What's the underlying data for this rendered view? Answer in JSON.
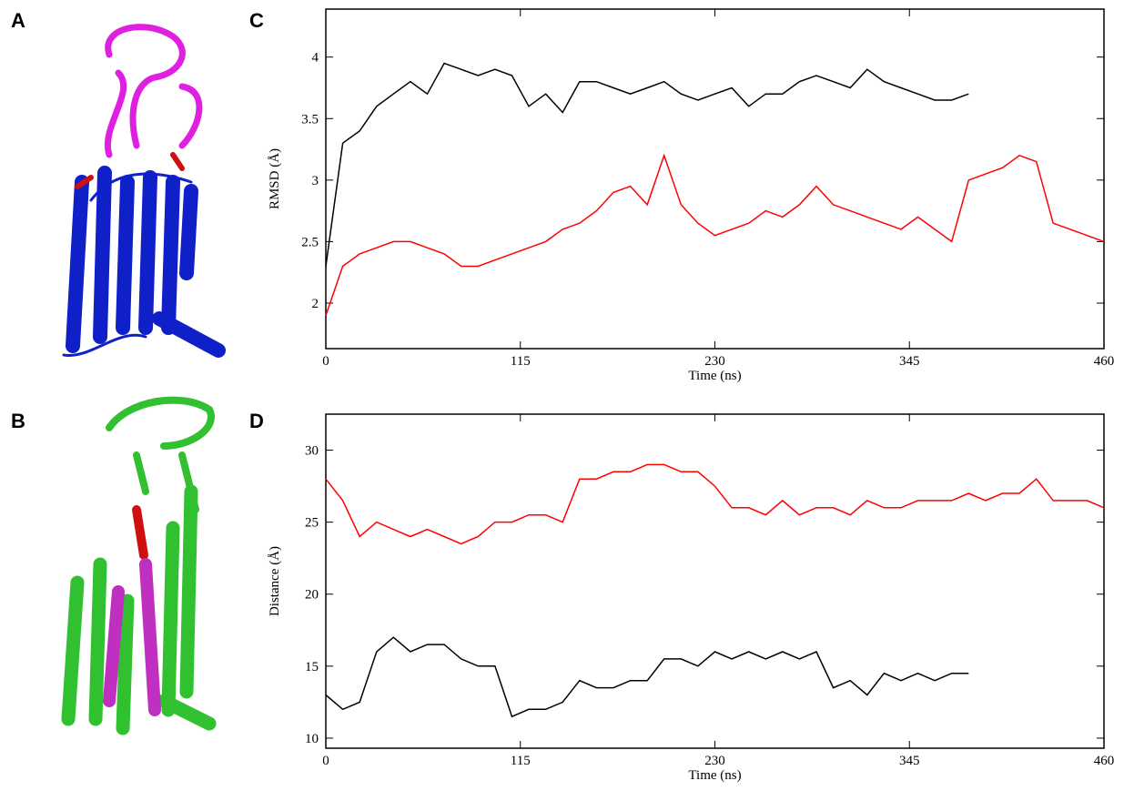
{
  "panel_labels": [
    "A",
    "B",
    "C",
    "D"
  ],
  "chart_data": [
    {
      "type": "line",
      "y_label": "RMSD (Å)",
      "x_label": "Time (ns)",
      "xlim": [
        0,
        460
      ],
      "xticks": [
        0,
        115,
        230,
        345,
        460
      ],
      "ylim": [
        1.63,
        4.39
      ],
      "yticks": [
        2,
        2.5,
        3,
        3.5,
        4
      ],
      "series": [
        {
          "color": "#000000",
          "x": [
            0,
            10,
            20,
            30,
            40,
            50,
            60,
            70,
            80,
            90,
            100,
            110,
            120,
            130,
            140,
            150,
            160,
            170,
            180,
            190,
            200,
            210,
            220,
            230,
            240,
            250,
            260,
            270,
            280,
            290,
            300,
            310,
            320,
            330,
            340,
            350,
            360,
            370,
            380
          ],
          "values": [
            2.3,
            3.3,
            3.4,
            3.6,
            3.7,
            3.8,
            3.7,
            3.95,
            3.9,
            3.85,
            3.9,
            3.85,
            3.6,
            3.7,
            3.55,
            3.8,
            3.8,
            3.75,
            3.7,
            3.75,
            3.8,
            3.7,
            3.65,
            3.7,
            3.75,
            3.6,
            3.7,
            3.7,
            3.8,
            3.85,
            3.8,
            3.75,
            3.9,
            3.8,
            3.75,
            3.7,
            3.65,
            3.65,
            3.7
          ]
        },
        {
          "color": "#ff0000",
          "x": [
            0,
            10,
            20,
            30,
            40,
            50,
            60,
            70,
            80,
            90,
            100,
            110,
            120,
            130,
            140,
            150,
            160,
            170,
            180,
            190,
            200,
            210,
            220,
            230,
            240,
            250,
            260,
            270,
            280,
            290,
            300,
            310,
            320,
            330,
            340,
            350,
            360,
            370,
            380,
            390,
            400,
            410,
            420,
            430,
            440,
            450,
            460
          ],
          "values": [
            1.9,
            2.3,
            2.4,
            2.45,
            2.5,
            2.5,
            2.45,
            2.4,
            2.3,
            2.3,
            2.35,
            2.4,
            2.45,
            2.5,
            2.6,
            2.65,
            2.75,
            2.9,
            2.95,
            2.8,
            3.2,
            2.8,
            2.65,
            2.55,
            2.6,
            2.65,
            2.75,
            2.7,
            2.8,
            2.95,
            2.8,
            2.75,
            2.7,
            2.65,
            2.6,
            2.7,
            2.6,
            2.5,
            3.0,
            3.05,
            3.1,
            3.2,
            3.15,
            2.65,
            2.6,
            2.55,
            2.5
          ]
        }
      ]
    },
    {
      "type": "line",
      "y_label": "Distance (Å)",
      "x_label": "Time (ns)",
      "xlim": [
        0,
        460
      ],
      "xticks": [
        0,
        115,
        230,
        345,
        460
      ],
      "ylim": [
        9.3,
        32.5
      ],
      "yticks": [
        10,
        15,
        20,
        25,
        30
      ],
      "series": [
        {
          "color": "#ff0000",
          "x": [
            0,
            10,
            20,
            30,
            40,
            50,
            60,
            70,
            80,
            90,
            100,
            110,
            120,
            130,
            140,
            150,
            160,
            170,
            180,
            190,
            200,
            210,
            220,
            230,
            240,
            250,
            260,
            270,
            280,
            290,
            300,
            310,
            320,
            330,
            340,
            350,
            360,
            370,
            380,
            390,
            400,
            410,
            420,
            430,
            440,
            450,
            460
          ],
          "values": [
            28,
            26.5,
            24,
            25,
            24.5,
            24,
            24.5,
            24,
            23.5,
            24,
            25,
            25,
            25.5,
            25.5,
            25,
            28,
            28,
            28.5,
            28.5,
            29,
            29,
            28.5,
            28.5,
            27.5,
            26,
            26,
            25.5,
            26.5,
            25.5,
            26,
            26,
            25.5,
            26.5,
            26,
            26,
            26.5,
            26.5,
            26.5,
            27,
            26.5,
            27,
            27,
            28,
            26.5,
            26.5,
            26.5,
            26
          ]
        },
        {
          "color": "#000000",
          "x": [
            0,
            10,
            20,
            30,
            40,
            50,
            60,
            70,
            80,
            90,
            100,
            110,
            120,
            130,
            140,
            150,
            160,
            170,
            180,
            190,
            200,
            210,
            220,
            230,
            240,
            250,
            260,
            270,
            280,
            290,
            300,
            310,
            320,
            330,
            340,
            350,
            360,
            370,
            380
          ],
          "values": [
            13,
            12,
            12.5,
            16,
            17,
            16,
            16.5,
            16.5,
            15.5,
            15,
            15,
            11.5,
            12,
            12,
            12.5,
            14,
            13.5,
            13.5,
            14,
            14,
            15.5,
            15.5,
            15,
            16,
            15.5,
            16,
            15.5,
            16,
            15.5,
            16,
            13.5,
            14,
            13,
            14.5,
            14,
            14.5,
            14,
            14.5,
            14.5
          ]
        }
      ]
    }
  ]
}
